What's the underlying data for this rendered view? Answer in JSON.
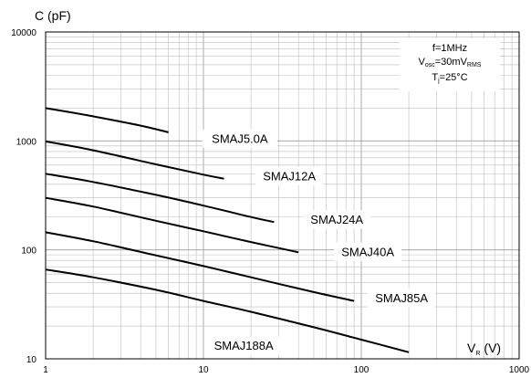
{
  "chart_data": {
    "type": "line",
    "xscale": "log",
    "yscale": "log",
    "xlim": [
      1,
      1000
    ],
    "ylim": [
      10,
      10000
    ],
    "grid": true,
    "xlabel": {
      "main": "V",
      "sub": "R",
      "unit": "(V)"
    },
    "ylabel": "C (pF)",
    "x_tick_labels": [
      "1",
      "10",
      "100",
      "1000"
    ],
    "y_tick_labels": [
      "10",
      "100",
      "1000",
      "10000"
    ],
    "x_ticks": [
      1,
      10,
      100,
      1000
    ],
    "y_ticks": [
      10,
      100,
      1000,
      10000
    ],
    "conditions": {
      "line1": "f=1MHz",
      "line2": {
        "main": "V",
        "sub": "osc",
        "mid": "=30mV",
        "sub2": "RMS"
      },
      "line3": {
        "main": "T",
        "sub": "j",
        "rest": "=25°C"
      }
    },
    "series": [
      {
        "name": "SMAJ5.0A",
        "x": [
          1,
          2,
          4,
          6
        ],
        "y": [
          2000,
          1680,
          1380,
          1200
        ]
      },
      {
        "name": "SMAJ12A",
        "x": [
          1,
          2,
          5,
          10,
          13.5
        ],
        "y": [
          990,
          820,
          610,
          490,
          450
        ]
      },
      {
        "name": "SMAJ24A",
        "x": [
          1,
          2,
          5,
          10,
          20,
          28
        ],
        "y": [
          500,
          420,
          320,
          255,
          200,
          180
        ]
      },
      {
        "name": "SMAJ40A",
        "x": [
          1,
          2,
          5,
          10,
          20,
          40
        ],
        "y": [
          300,
          250,
          185,
          148,
          118,
          95
        ]
      },
      {
        "name": "SMAJ85A",
        "x": [
          1,
          2,
          5,
          10,
          20,
          50,
          90
        ],
        "y": [
          145,
          120,
          89,
          71,
          56,
          41,
          34
        ]
      },
      {
        "name": "SMAJ188A",
        "x": [
          1,
          2,
          5,
          10,
          20,
          50,
          100,
          200
        ],
        "y": [
          66,
          56,
          43,
          34,
          27,
          19.5,
          15,
          11.5
        ]
      }
    ]
  }
}
